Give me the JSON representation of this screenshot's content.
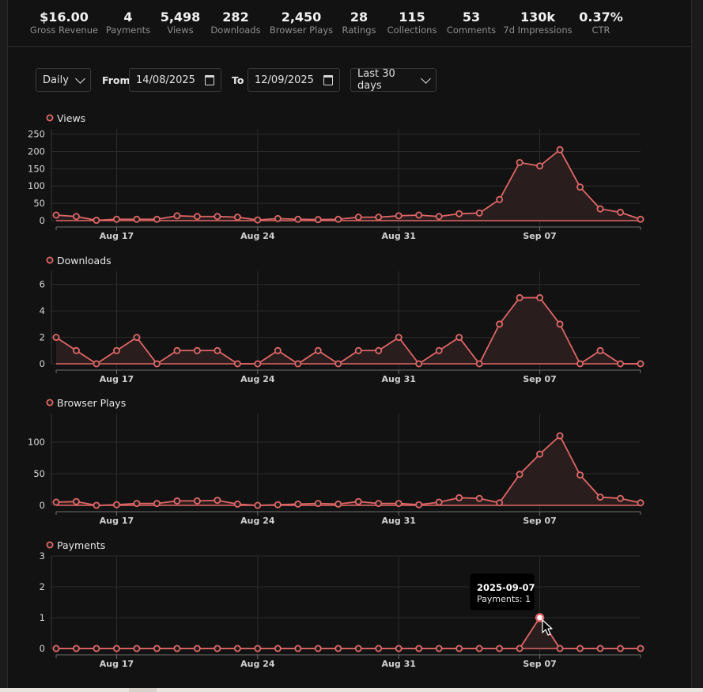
{
  "stats": [
    {
      "value": "$16.00",
      "label": "Gross Revenue"
    },
    {
      "value": "4",
      "label": "Payments"
    },
    {
      "value": "5,498",
      "label": "Views"
    },
    {
      "value": "282",
      "label": "Downloads"
    },
    {
      "value": "2,450",
      "label": "Browser Plays"
    },
    {
      "value": "28",
      "label": "Ratings"
    },
    {
      "value": "115",
      "label": "Collections"
    },
    {
      "value": "53",
      "label": "Comments"
    },
    {
      "value": "130k",
      "label": "7d Impressions"
    },
    {
      "value": "0.37%",
      "label": "CTR"
    }
  ],
  "controls": {
    "interval": "Daily",
    "from_label": "From",
    "from_value": "14/08/2025",
    "to_label": "To",
    "to_value": "12/09/2025",
    "range": "Last 30 days"
  },
  "colors": {
    "line": "#e06666",
    "fill": "#2a1d1d",
    "grid": "#2b2b2b",
    "axis": "#6f6f6f"
  },
  "tooltip": {
    "date": "2025-09-07",
    "text": "Payments: 1"
  },
  "chart_data": [
    {
      "type": "area",
      "title": "Views",
      "x": [
        "2025-08-14",
        "2025-08-15",
        "2025-08-16",
        "2025-08-17",
        "2025-08-18",
        "2025-08-19",
        "2025-08-20",
        "2025-08-21",
        "2025-08-22",
        "2025-08-23",
        "2025-08-24",
        "2025-08-25",
        "2025-08-26",
        "2025-08-27",
        "2025-08-28",
        "2025-08-29",
        "2025-08-30",
        "2025-08-31",
        "2025-09-01",
        "2025-09-02",
        "2025-09-03",
        "2025-09-04",
        "2025-09-05",
        "2025-09-06",
        "2025-09-07",
        "2025-09-08",
        "2025-09-09",
        "2025-09-10",
        "2025-09-11",
        "2025-09-12"
      ],
      "x_ticks": [
        "Aug 17",
        "Aug 24",
        "Aug 31",
        "Sep 07"
      ],
      "values": [
        16,
        12,
        1,
        4,
        4,
        4,
        14,
        12,
        12,
        10,
        2,
        6,
        4,
        3,
        4,
        10,
        10,
        14,
        16,
        12,
        20,
        22,
        61,
        168,
        158,
        205,
        97,
        34,
        24,
        4
      ],
      "yticks": [
        0,
        50,
        100,
        150,
        200,
        250
      ],
      "ylim": [
        0,
        265
      ]
    },
    {
      "type": "area",
      "title": "Downloads",
      "x": [
        "2025-08-14",
        "2025-08-15",
        "2025-08-16",
        "2025-08-17",
        "2025-08-18",
        "2025-08-19",
        "2025-08-20",
        "2025-08-21",
        "2025-08-22",
        "2025-08-23",
        "2025-08-24",
        "2025-08-25",
        "2025-08-26",
        "2025-08-27",
        "2025-08-28",
        "2025-08-29",
        "2025-08-30",
        "2025-08-31",
        "2025-09-01",
        "2025-09-02",
        "2025-09-03",
        "2025-09-04",
        "2025-09-05",
        "2025-09-06",
        "2025-09-07",
        "2025-09-08",
        "2025-09-09",
        "2025-09-10",
        "2025-09-11",
        "2025-09-12"
      ],
      "x_ticks": [
        "Aug 17",
        "Aug 24",
        "Aug 31",
        "Sep 07"
      ],
      "values": [
        2,
        1,
        0,
        1,
        2,
        0,
        1,
        1,
        1,
        0,
        0,
        1,
        0,
        1,
        0,
        1,
        1,
        2,
        0,
        1,
        2,
        0,
        3,
        5,
        5,
        3,
        0,
        1,
        0,
        0
      ],
      "yticks": [
        0,
        2,
        4,
        6
      ],
      "ylim": [
        0,
        7
      ]
    },
    {
      "type": "area",
      "title": "Browser Plays",
      "x": [
        "2025-08-14",
        "2025-08-15",
        "2025-08-16",
        "2025-08-17",
        "2025-08-18",
        "2025-08-19",
        "2025-08-20",
        "2025-08-21",
        "2025-08-22",
        "2025-08-23",
        "2025-08-24",
        "2025-08-25",
        "2025-08-26",
        "2025-08-27",
        "2025-08-28",
        "2025-08-29",
        "2025-08-30",
        "2025-08-31",
        "2025-09-01",
        "2025-09-02",
        "2025-09-03",
        "2025-09-04",
        "2025-09-05",
        "2025-09-06",
        "2025-09-07",
        "2025-09-08",
        "2025-09-09",
        "2025-09-10",
        "2025-09-11",
        "2025-09-12"
      ],
      "x_ticks": [
        "Aug 17",
        "Aug 24",
        "Aug 31",
        "Sep 07"
      ],
      "values": [
        5,
        6,
        0,
        1,
        3,
        3,
        7,
        7,
        8,
        2,
        0,
        1,
        2,
        3,
        2,
        6,
        3,
        3,
        1,
        5,
        12,
        11,
        4,
        49,
        81,
        110,
        48,
        13,
        11,
        4
      ],
      "yticks": [
        0,
        50,
        100
      ],
      "ylim": [
        0,
        145
      ]
    },
    {
      "type": "area",
      "title": "Payments",
      "x": [
        "2025-08-14",
        "2025-08-15",
        "2025-08-16",
        "2025-08-17",
        "2025-08-18",
        "2025-08-19",
        "2025-08-20",
        "2025-08-21",
        "2025-08-22",
        "2025-08-23",
        "2025-08-24",
        "2025-08-25",
        "2025-08-26",
        "2025-08-27",
        "2025-08-28",
        "2025-08-29",
        "2025-08-30",
        "2025-08-31",
        "2025-09-01",
        "2025-09-02",
        "2025-09-03",
        "2025-09-04",
        "2025-09-05",
        "2025-09-06",
        "2025-09-07",
        "2025-09-08",
        "2025-09-09",
        "2025-09-10",
        "2025-09-11",
        "2025-09-12"
      ],
      "x_ticks": [
        "Aug 17",
        "Aug 24",
        "Aug 31",
        "Sep 07"
      ],
      "values": [
        0,
        0,
        0,
        0,
        0,
        0,
        0,
        0,
        0,
        0,
        0,
        0,
        0,
        0,
        0,
        0,
        0,
        0,
        0,
        0,
        0,
        0,
        0,
        0,
        1,
        0,
        0,
        0,
        0,
        0
      ],
      "yticks": [
        0,
        1,
        2,
        3
      ],
      "ylim": [
        0,
        3
      ]
    }
  ]
}
